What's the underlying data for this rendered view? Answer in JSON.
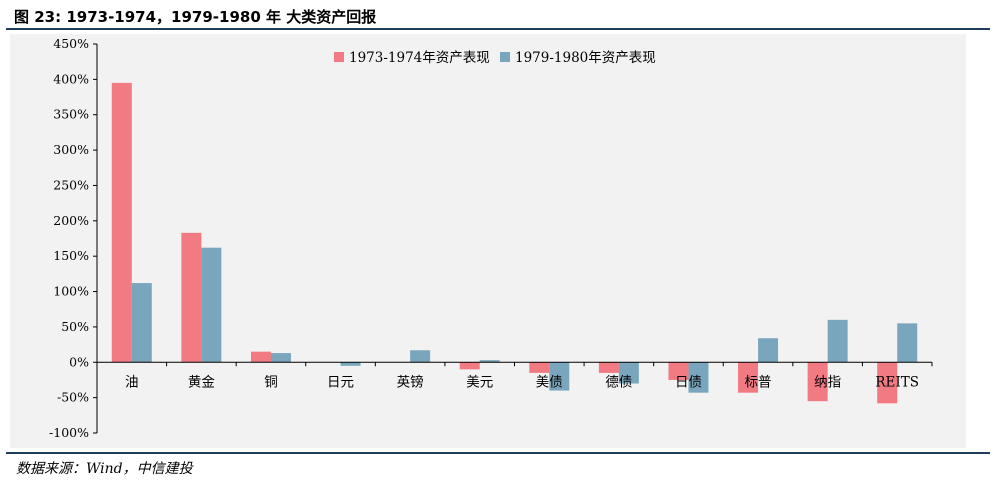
{
  "figure": {
    "title": "图 23: 1973-1974，1979-1980 年 大类资产回报",
    "source": "数据来源：Wind，中信建投"
  },
  "chart_data": {
    "type": "bar",
    "title": "",
    "xlabel": "",
    "ylabel": "",
    "categories": [
      "油",
      "黄金",
      "铜",
      "日元",
      "英镑",
      "美元",
      "美债",
      "德债",
      "日债",
      "标普",
      "纳指",
      "REITS"
    ],
    "series": [
      {
        "name": "1973-1974年资产表现",
        "color": "#f27a82",
        "values": [
          395,
          183,
          15,
          0,
          0,
          -10,
          -15,
          -15,
          -25,
          -43,
          -55,
          -58
        ]
      },
      {
        "name": "1979-1980年资产表现",
        "color": "#7aa6bd",
        "values": [
          112,
          162,
          13,
          -5,
          17,
          3,
          -40,
          -30,
          -43,
          34,
          60,
          55
        ]
      }
    ],
    "ylim": [
      -100,
      450
    ],
    "yticks": [
      -100,
      -50,
      0,
      50,
      100,
      150,
      200,
      250,
      300,
      350,
      400,
      450
    ],
    "ytick_format": "percent",
    "legend_position": "top-center",
    "grid": false,
    "background": "#f2f2f2"
  }
}
